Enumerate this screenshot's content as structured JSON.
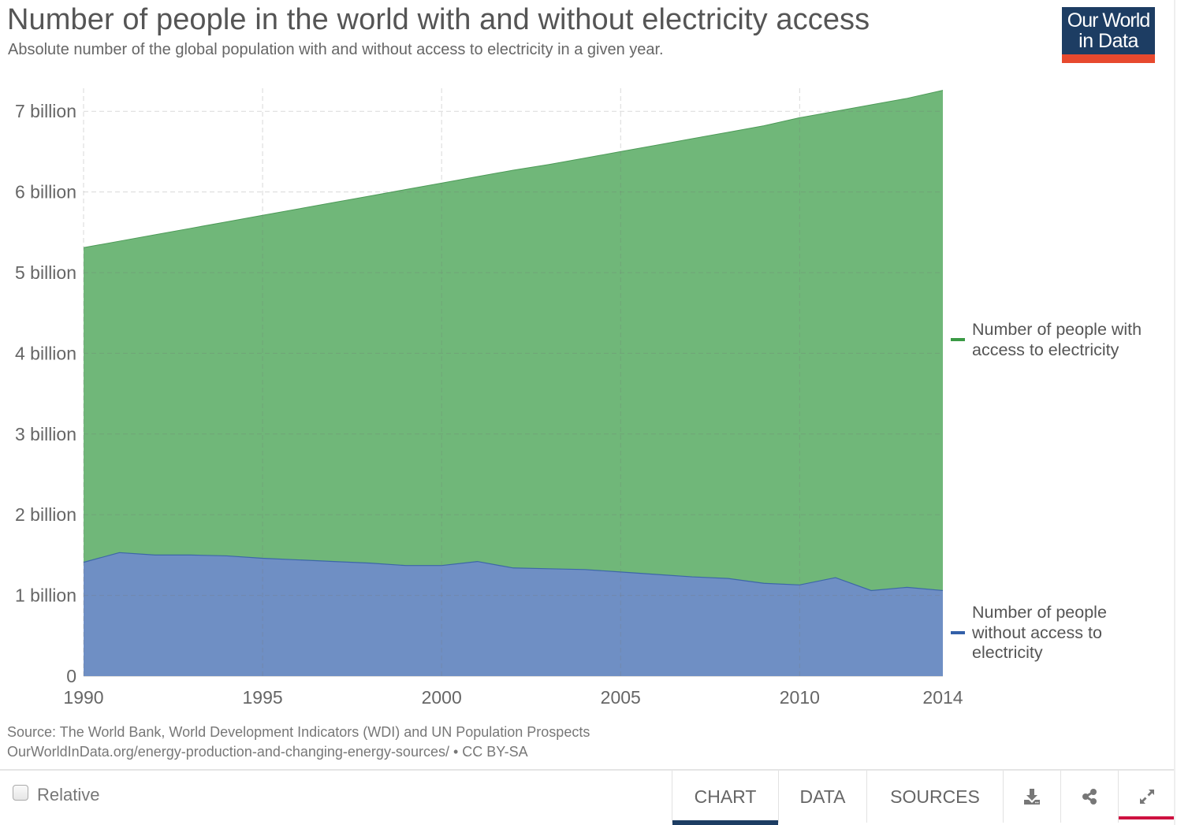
{
  "header": {
    "title": "Number of people in the world with and without electricity access",
    "subtitle": "Absolute number of the global population with and without access to electricity in a given year.",
    "logo_line1": "Our World",
    "logo_line2": "in Data"
  },
  "chart_data": {
    "type": "area",
    "stacked": true,
    "title": "Number of people in the world with and without electricity access",
    "subtitle": "Absolute number of the global population with and without access to electricity in a given year.",
    "xlabel": "",
    "ylabel": "",
    "x": [
      1990,
      1991,
      1992,
      1993,
      1994,
      1995,
      1996,
      1997,
      1998,
      1999,
      2000,
      2001,
      2002,
      2003,
      2004,
      2005,
      2006,
      2007,
      2008,
      2009,
      2010,
      2011,
      2012,
      2013,
      2014
    ],
    "xlim": [
      1990,
      2014
    ],
    "ylim": [
      0,
      7.26
    ],
    "x_ticks": [
      1990,
      1995,
      2000,
      2005,
      2010,
      2014
    ],
    "x_tick_labels": [
      "1990",
      "1995",
      "2000",
      "2005",
      "2010",
      "2014"
    ],
    "y_ticks": [
      0,
      1,
      2,
      3,
      4,
      5,
      6,
      7
    ],
    "y_tick_labels": [
      "0",
      "1 billion",
      "2 billion",
      "3 billion",
      "4 billion",
      "5 billion",
      "6 billion",
      "7 billion"
    ],
    "units": "billion people",
    "grid": true,
    "legend_position": "right",
    "series": [
      {
        "name": "Number of people without access to electricity",
        "color": "#6f8fc4",
        "line_color": "#3d67a8",
        "legend_color": "#3360a9",
        "values": [
          1.41,
          1.53,
          1.5,
          1.5,
          1.49,
          1.46,
          1.44,
          1.42,
          1.4,
          1.37,
          1.37,
          1.42,
          1.34,
          1.33,
          1.32,
          1.29,
          1.26,
          1.23,
          1.21,
          1.15,
          1.13,
          1.22,
          1.06,
          1.1,
          1.06
        ]
      },
      {
        "name": "Number of people with access to electricity",
        "color": "#70b779",
        "line_color": "#4c9a57",
        "legend_color": "#3a9a45",
        "values": [
          3.9,
          3.86,
          3.97,
          4.05,
          4.14,
          4.25,
          4.35,
          4.45,
          4.55,
          4.66,
          4.74,
          4.77,
          4.93,
          5.01,
          5.1,
          5.21,
          5.32,
          5.43,
          5.53,
          5.67,
          5.79,
          5.78,
          6.02,
          6.06,
          6.2
        ]
      }
    ]
  },
  "legend": [
    {
      "label_lines": [
        "Number of people with",
        "access to electricity"
      ]
    },
    {
      "label_lines": [
        "Number of people",
        "without access to",
        "electricity"
      ]
    }
  ],
  "footer": {
    "source": "Source: The World Bank, World Development Indicators (WDI) and UN Population Prospects",
    "url_license": "OurWorldInData.org/energy-production-and-changing-energy-sources/ • CC BY-SA"
  },
  "controls": {
    "relative_label": "Relative",
    "relative_checked": false
  },
  "tabs": [
    {
      "label": "CHART",
      "active": true
    },
    {
      "label": "DATA",
      "active": false
    },
    {
      "label": "SOURCES",
      "active": false
    }
  ],
  "icon_buttons": [
    {
      "icon": "download-icon"
    },
    {
      "icon": "share-icon"
    },
    {
      "icon": "expand-icon"
    }
  ]
}
